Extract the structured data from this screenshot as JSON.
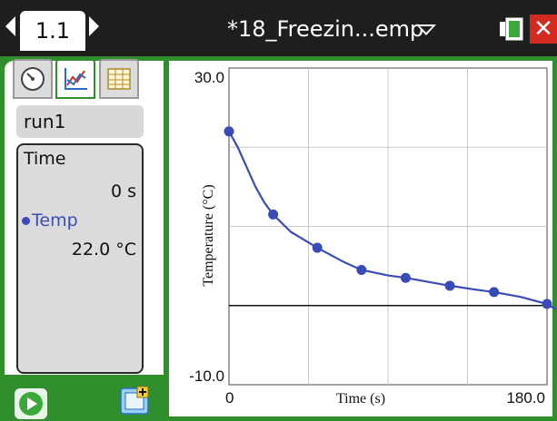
{
  "topbar": {
    "page_tab": "1.1",
    "doc_title": "*18_Freezin...emp",
    "colors": {
      "close": "#d32b20",
      "battery": "#3aa93a"
    }
  },
  "tools": {
    "tabs": [
      {
        "name": "meter",
        "icon": "gauge-icon"
      },
      {
        "name": "graph",
        "icon": "graph-icon",
        "active": true
      },
      {
        "name": "table",
        "icon": "table-icon"
      }
    ]
  },
  "run": {
    "label": "run1"
  },
  "readout": {
    "time_label": "Time",
    "time_value": "0 s",
    "temp_label": "Temp",
    "temp_value": "22.0 °C"
  },
  "bottom": {
    "play_icon": "play-icon",
    "collect_icon": "collect-icon"
  },
  "chart_data": {
    "type": "scatter",
    "xlabel": "Time (s)",
    "ylabel": "Temperature (°C)",
    "x_tick_labels": [
      "0",
      "180.0"
    ],
    "y_tick_labels": [
      "30.0",
      "-10.0"
    ],
    "xlim": [
      0,
      180
    ],
    "ylim": [
      -10,
      30
    ],
    "grid": true,
    "series": [
      {
        "color": "#3a4bb8",
        "x": [
          0,
          25,
          50,
          75,
          100,
          125,
          150,
          180
        ],
        "y": [
          22.0,
          11.5,
          7.3,
          4.5,
          3.5,
          2.5,
          1.7,
          0.2
        ],
        "curve_x": [
          0,
          5,
          10,
          15,
          20,
          25,
          35,
          50,
          65,
          75,
          90,
          100,
          115,
          125,
          140,
          150,
          165,
          180
        ],
        "curve_y": [
          22.0,
          20.0,
          17.5,
          15.0,
          13.0,
          11.5,
          9.3,
          7.3,
          5.5,
          4.5,
          3.8,
          3.5,
          2.9,
          2.5,
          2.0,
          1.7,
          1.1,
          0.2
        ]
      }
    ]
  }
}
